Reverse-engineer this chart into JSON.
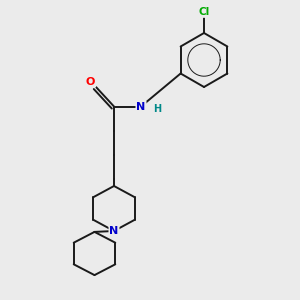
{
  "bg_color": "#ebebeb",
  "bond_color": "#1a1a1a",
  "bond_width": 1.4,
  "atom_colors": {
    "O": "#ff0000",
    "N_amide": "#0000cc",
    "N_pip": "#0000cc",
    "H": "#008888",
    "Cl": "#00aa00",
    "C": "#1a1a1a"
  },
  "figsize": [
    3.0,
    3.0
  ],
  "dpi": 100,
  "xlim": [
    0,
    10
  ],
  "ylim": [
    0,
    10
  ]
}
